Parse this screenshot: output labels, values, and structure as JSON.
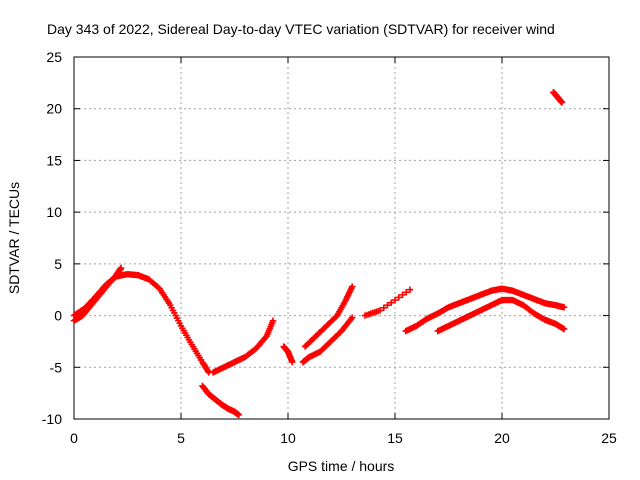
{
  "chart_data": {
    "type": "scatter",
    "title": "Day 343 of 2022, Sidereal Day-to-day VTEC variation (SDTVAR) for receiver wind",
    "xlabel": "GPS time / hours",
    "ylabel": "SDTVAR / TECUs",
    "xlim": [
      0,
      25
    ],
    "ylim": [
      -10,
      25
    ],
    "xticks": [
      0,
      5,
      10,
      15,
      20,
      25
    ],
    "yticks": [
      -10,
      -5,
      0,
      5,
      10,
      15,
      20,
      25
    ],
    "xtick_labels": [
      "0",
      "5",
      "10",
      "15",
      "20",
      "25"
    ],
    "ytick_labels": [
      "-10",
      "-5",
      "0",
      "5",
      "10",
      "15",
      "20",
      "25"
    ],
    "grid": true,
    "marker": "+",
    "color": "#ff0000",
    "series": [
      {
        "name": "track-a",
        "x": [
          0.0,
          0.5,
          1.0,
          1.5,
          2.0,
          2.5,
          3.0,
          3.5,
          4.0,
          4.5,
          5.0,
          5.5,
          6.0,
          6.3
        ],
        "y": [
          0.0,
          0.7,
          1.8,
          3.0,
          3.8,
          4.0,
          3.9,
          3.5,
          2.6,
          1.0,
          -1.0,
          -2.8,
          -4.5,
          -5.5
        ]
      },
      {
        "name": "track-b",
        "x": [
          0.0,
          0.4,
          0.8,
          1.2,
          1.6,
          2.0,
          2.2
        ],
        "y": [
          -0.5,
          0.0,
          1.0,
          2.0,
          3.0,
          4.0,
          4.6
        ]
      },
      {
        "name": "track-c",
        "x": [
          6.0,
          6.3,
          6.6,
          6.9,
          7.2,
          7.5,
          7.7
        ],
        "y": [
          -6.8,
          -7.6,
          -8.1,
          -8.6,
          -9.0,
          -9.3,
          -9.6
        ]
      },
      {
        "name": "track-d",
        "x": [
          6.5,
          7.0,
          7.5,
          8.0,
          8.5,
          9.0,
          9.3
        ],
        "y": [
          -5.5,
          -5.0,
          -4.5,
          -4.0,
          -3.2,
          -2.0,
          -0.5
        ]
      },
      {
        "name": "track-e",
        "x": [
          9.8,
          10.0,
          10.2
        ],
        "y": [
          -3.0,
          -3.5,
          -4.5
        ]
      },
      {
        "name": "track-f",
        "x": [
          10.7,
          11.0,
          11.5,
          12.0,
          12.5,
          13.0
        ],
        "y": [
          -4.5,
          -4.0,
          -3.5,
          -2.5,
          -1.5,
          -0.2
        ]
      },
      {
        "name": "track-g",
        "x": [
          10.8,
          11.3,
          11.8,
          12.3,
          12.7,
          13.0
        ],
        "y": [
          -3.0,
          -2.0,
          -1.0,
          0.0,
          1.5,
          2.8
        ]
      },
      {
        "name": "track-h",
        "x": [
          13.6,
          14.3,
          15.7
        ],
        "y": [
          0.0,
          0.5,
          2.5
        ]
      },
      {
        "name": "track-i",
        "x": [
          15.5,
          16.0,
          16.5,
          17.0,
          17.5,
          18.0,
          18.5,
          19.0,
          19.5,
          20.0,
          20.5,
          21.0,
          21.5,
          22.0,
          22.5,
          22.9
        ],
        "y": [
          -1.5,
          -1.0,
          -0.3,
          0.2,
          0.8,
          1.2,
          1.6,
          2.0,
          2.4,
          2.6,
          2.4,
          2.0,
          1.6,
          1.2,
          1.0,
          0.8
        ]
      },
      {
        "name": "track-j",
        "x": [
          17.0,
          17.5,
          18.0,
          18.5,
          19.0,
          19.5,
          20.0,
          20.5,
          21.0,
          21.5,
          22.0,
          22.5,
          22.9
        ],
        "y": [
          -1.5,
          -1.0,
          -0.5,
          0.0,
          0.5,
          1.0,
          1.5,
          1.5,
          1.0,
          0.2,
          -0.4,
          -0.8,
          -1.3
        ]
      },
      {
        "name": "track-k",
        "x": [
          22.4,
          22.6,
          22.8
        ],
        "y": [
          21.6,
          21.1,
          20.6
        ]
      }
    ]
  }
}
